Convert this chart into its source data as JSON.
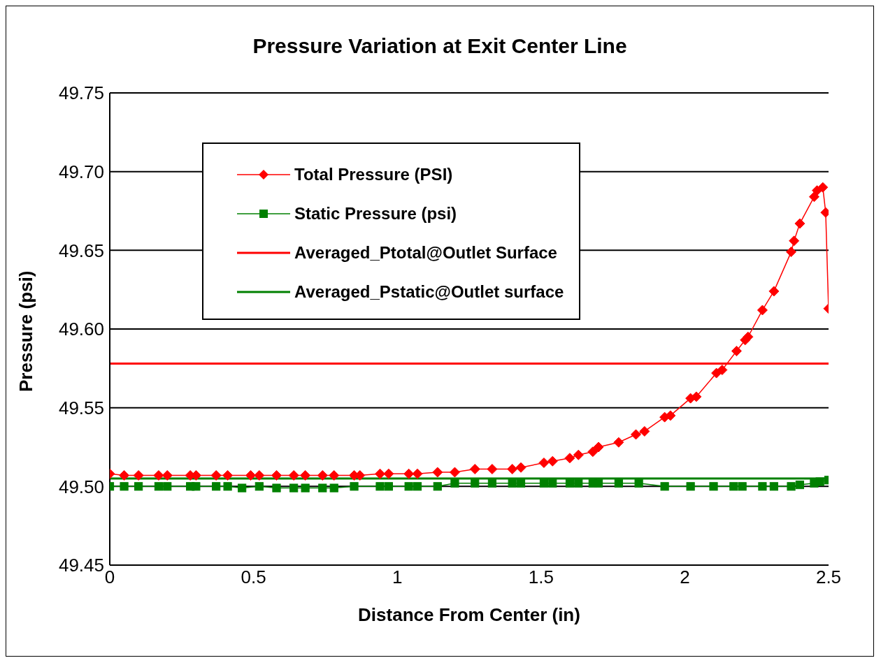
{
  "chart_data": {
    "type": "line",
    "title": "Pressure Variation at Exit Center Line",
    "xlabel": "Distance From Center (in)",
    "ylabel": "Pressure (psi)",
    "xlim": [
      0,
      2.5
    ],
    "xticks": [
      0,
      0.5,
      1,
      1.5,
      2,
      2.5
    ],
    "ylim": [
      49.45,
      49.75
    ],
    "yticks": [
      {
        "value": 49.45,
        "label": "49.45"
      },
      {
        "value": 49.5,
        "label": "49.50"
      },
      {
        "value": 49.55,
        "label": "49.55"
      },
      {
        "value": 49.6,
        "label": "49.60"
      },
      {
        "value": 49.65,
        "label": "49.65"
      },
      {
        "value": 49.7,
        "label": "49.70"
      },
      {
        "value": 49.75,
        "label": "49.75"
      }
    ],
    "grid": "y",
    "legend": "top",
    "series": [
      {
        "name": "Total Pressure (PSI)",
        "color": "#ff0000",
        "marker": "diamond",
        "x": [
          0,
          0.05,
          0.1,
          0.17,
          0.2,
          0.28,
          0.3,
          0.37,
          0.41,
          0.49,
          0.52,
          0.58,
          0.64,
          0.68,
          0.74,
          0.78,
          0.85,
          0.87,
          0.94,
          0.97,
          1.04,
          1.07,
          1.14,
          1.2,
          1.27,
          1.33,
          1.4,
          1.43,
          1.51,
          1.54,
          1.6,
          1.63,
          1.68,
          1.7,
          1.77,
          1.83,
          1.86,
          1.93,
          1.95,
          2.02,
          2.04,
          2.11,
          2.13,
          2.18,
          2.21,
          2.22,
          2.27,
          2.31,
          2.37,
          2.38,
          2.4,
          2.45,
          2.46,
          2.48,
          2.49,
          2.5
        ],
        "values": [
          49.508,
          49.507,
          49.507,
          49.507,
          49.507,
          49.507,
          49.507,
          49.507,
          49.507,
          49.507,
          49.507,
          49.507,
          49.507,
          49.507,
          49.507,
          49.507,
          49.507,
          49.507,
          49.508,
          49.508,
          49.508,
          49.508,
          49.509,
          49.509,
          49.511,
          49.511,
          49.511,
          49.512,
          49.515,
          49.516,
          49.518,
          49.52,
          49.522,
          49.525,
          49.528,
          49.533,
          49.535,
          49.544,
          49.545,
          49.556,
          49.557,
          49.572,
          49.574,
          49.586,
          49.593,
          49.595,
          49.612,
          49.624,
          49.649,
          49.656,
          49.667,
          49.684,
          49.688,
          49.69,
          49.674,
          49.613
        ]
      },
      {
        "name": "Static Pressure (psi)",
        "color": "#008000",
        "marker": "square",
        "x": [
          0,
          0.05,
          0.1,
          0.17,
          0.2,
          0.28,
          0.3,
          0.37,
          0.41,
          0.46,
          0.52,
          0.58,
          0.64,
          0.68,
          0.74,
          0.78,
          0.85,
          0.94,
          0.97,
          1.04,
          1.07,
          1.14,
          1.2,
          1.27,
          1.33,
          1.4,
          1.43,
          1.51,
          1.54,
          1.6,
          1.63,
          1.68,
          1.7,
          1.77,
          1.84,
          1.93,
          2.02,
          2.1,
          2.17,
          2.2,
          2.27,
          2.31,
          2.37,
          2.4,
          2.45,
          2.47,
          2.5
        ],
        "values": [
          49.5,
          49.5,
          49.5,
          49.5,
          49.5,
          49.5,
          49.5,
          49.5,
          49.5,
          49.499,
          49.5,
          49.499,
          49.499,
          49.499,
          49.499,
          49.499,
          49.5,
          49.5,
          49.5,
          49.5,
          49.5,
          49.5,
          49.502,
          49.502,
          49.502,
          49.502,
          49.502,
          49.502,
          49.502,
          49.502,
          49.502,
          49.502,
          49.502,
          49.502,
          49.502,
          49.5,
          49.5,
          49.5,
          49.5,
          49.5,
          49.5,
          49.5,
          49.5,
          49.501,
          49.502,
          49.503,
          49.504
        ]
      },
      {
        "name": "Averaged_Ptotal@Outlet Surface",
        "color": "#ff0000",
        "marker": "none",
        "x": [
          0,
          2.5
        ],
        "values": [
          49.578,
          49.578
        ]
      },
      {
        "name": "Averaged_Pstatic@Outlet surface",
        "color": "#008000",
        "marker": "none",
        "x": [
          0,
          2.5
        ],
        "values": [
          49.505,
          49.505
        ]
      }
    ]
  }
}
